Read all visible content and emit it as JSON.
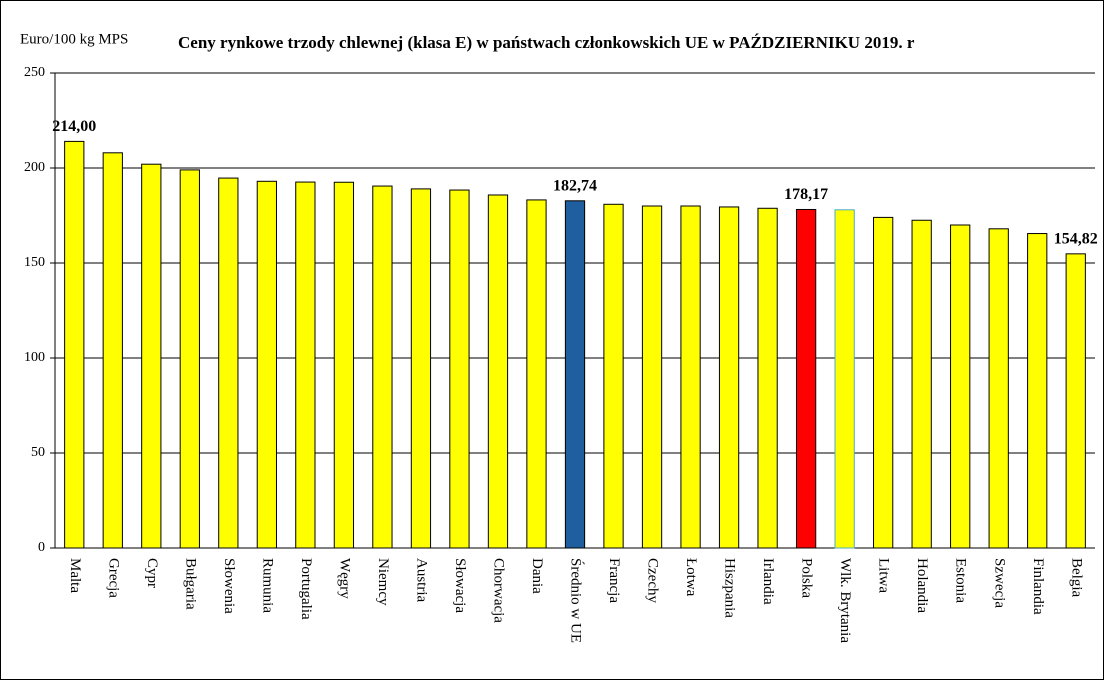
{
  "chart_data": {
    "type": "bar",
    "title": "Ceny rynkowe trzody chlewnej  (klasa E) w państwach członkowskich UE w  PAŹDZIERNIKU 2019. r",
    "y_label": "Euro/100 kg MPS",
    "categories": [
      "Malta",
      "Grecja",
      "Cypr",
      "Bułgaria",
      "Słowenia",
      "Rumunia",
      "Portugalia",
      "Węgry",
      "Niemcy",
      "Austria",
      "Słowacja",
      "Chorwacja",
      "Dania",
      "Średnio w UE",
      "Francja",
      "Czechy",
      "Łotwa",
      "Hiszpania",
      "Irlandia",
      "Polska",
      "Wlk. Brytania",
      "Litwa",
      "Holandia",
      "Estonia",
      "Szwecja",
      "Finlandia",
      "Belgia"
    ],
    "values": [
      214.0,
      208,
      202,
      199,
      194.7,
      193,
      192.6,
      192.5,
      190.5,
      189,
      188.4,
      185.8,
      183.2,
      182.74,
      180.9,
      180,
      180,
      179.5,
      178.8,
      178.17,
      178,
      174,
      172.5,
      170,
      168,
      165.5,
      154.82
    ],
    "value_labels": [
      "214,00",
      null,
      null,
      null,
      null,
      null,
      null,
      null,
      null,
      null,
      null,
      null,
      null,
      "182,74",
      null,
      null,
      null,
      null,
      null,
      "178,17",
      null,
      null,
      null,
      null,
      null,
      null,
      "154,82"
    ],
    "colors": [
      "#ffff00",
      "#ffff00",
      "#ffff00",
      "#ffff00",
      "#ffff00",
      "#ffff00",
      "#ffff00",
      "#ffff00",
      "#ffff00",
      "#ffff00",
      "#ffff00",
      "#ffff00",
      "#ffff00",
      "#1f5f9f",
      "#ffff00",
      "#ffff00",
      "#ffff00",
      "#ffff00",
      "#ffff00",
      "#ff0000",
      "#ffff00",
      "#ffff00",
      "#ffff00",
      "#ffff00",
      "#ffff00",
      "#ffff00",
      "#ffff00"
    ],
    "edge_colors": [
      "#000000",
      "#000000",
      "#000000",
      "#000000",
      "#000000",
      "#000000",
      "#000000",
      "#000000",
      "#000000",
      "#000000",
      "#000000",
      "#000000",
      "#000000",
      "#000000",
      "#000000",
      "#000000",
      "#000000",
      "#000000",
      "#000000",
      "#000000",
      "#4bacc6",
      "#000000",
      "#000000",
      "#000000",
      "#000000",
      "#000000",
      "#000000"
    ],
    "ylim": [
      0,
      250
    ],
    "yticks": [
      0,
      50,
      100,
      150,
      200,
      250
    ],
    "grid": true
  }
}
